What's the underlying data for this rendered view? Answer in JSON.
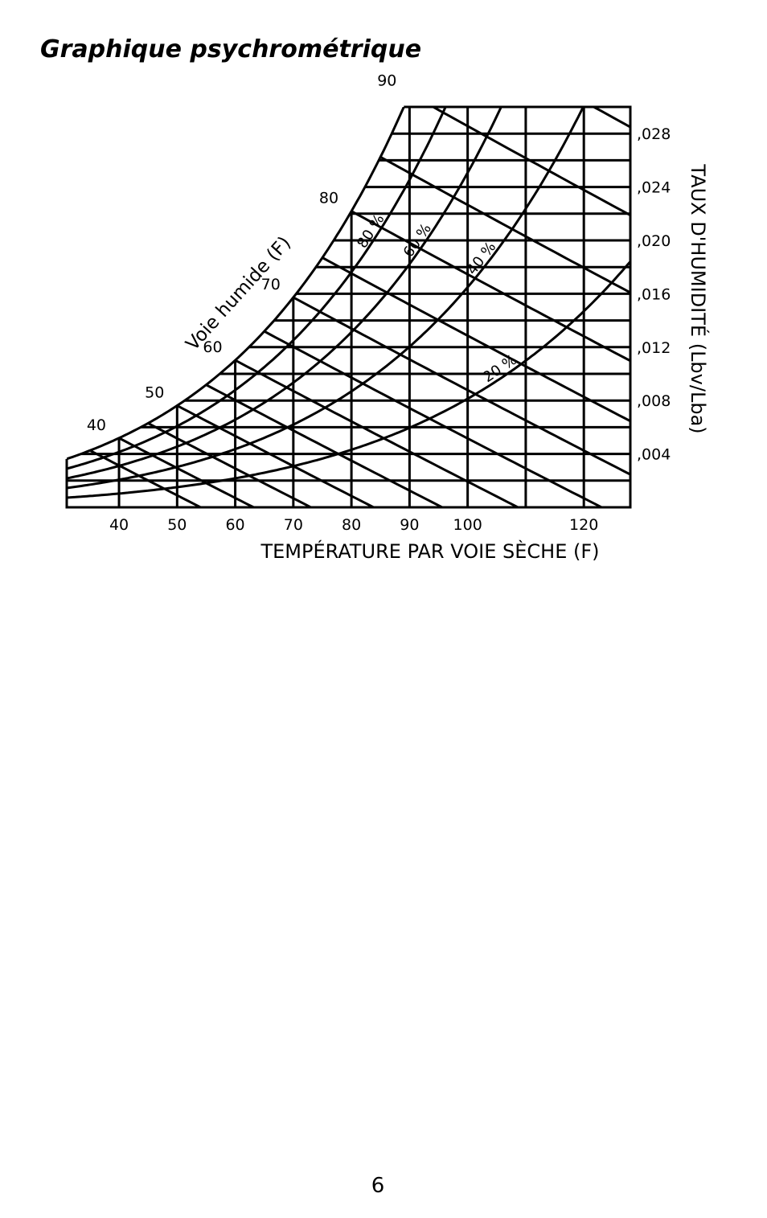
{
  "page": {
    "title": "Graphique psychrométrique",
    "page_number": "6"
  },
  "chart_data": {
    "type": "line",
    "title": "",
    "xlabel": "TEMPÉRATURE PAR VOIE SÈCHE (F)",
    "ylabel": "TAUX D'HUMIDITÉ (Lbv/Lba)",
    "wet_bulb_label": "Voie humide (F)",
    "xlim": [
      31,
      128
    ],
    "ylim": [
      0,
      0.03
    ],
    "x_ticks": [
      {
        "value": 40,
        "label": "40"
      },
      {
        "value": 50,
        "label": "50"
      },
      {
        "value": 60,
        "label": "60"
      },
      {
        "value": 70,
        "label": "70"
      },
      {
        "value": 80,
        "label": "80"
      },
      {
        "value": 90,
        "label": "90"
      },
      {
        "value": 100,
        "label": "100"
      },
      {
        "value": 120,
        "label": "120"
      }
    ],
    "y_ticks": [
      {
        "value": 0.004,
        "label": ",004"
      },
      {
        "value": 0.008,
        "label": ",008"
      },
      {
        "value": 0.012,
        "label": ",012"
      },
      {
        "value": 0.016,
        "label": ",016"
      },
      {
        "value": 0.02,
        "label": ",020"
      },
      {
        "value": 0.024,
        "label": ",024"
      },
      {
        "value": 0.028,
        "label": ",028"
      }
    ],
    "wet_bulb_lines": [
      {
        "value": 40,
        "label": "40"
      },
      {
        "value": 50,
        "label": "50"
      },
      {
        "value": 60,
        "label": "60"
      },
      {
        "value": 70,
        "label": "70"
      },
      {
        "value": 80,
        "label": "80"
      },
      {
        "value": 90,
        "label": "90"
      }
    ],
    "relative_humidity_curves": [
      {
        "value": 80,
        "label": "80 %"
      },
      {
        "value": 60,
        "label": "60 %"
      },
      {
        "value": 40,
        "label": "40 %"
      },
      {
        "value": 20,
        "label": "20 %"
      }
    ],
    "grid": true
  }
}
